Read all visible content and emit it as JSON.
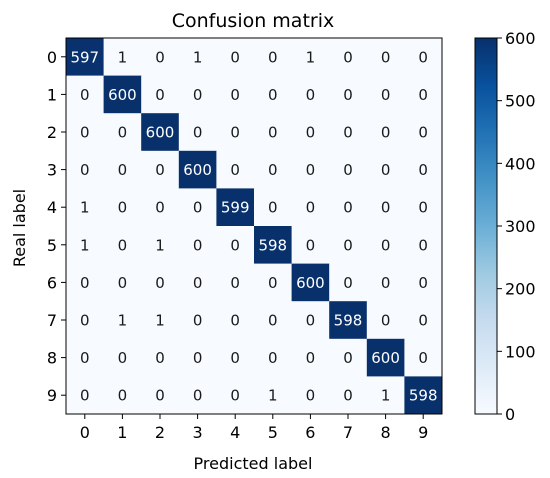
{
  "chart_data": {
    "type": "heatmap",
    "title": "Confusion matrix",
    "xlabel": "Predicted label",
    "ylabel": "Real label",
    "x_categories": [
      "0",
      "1",
      "2",
      "3",
      "4",
      "5",
      "6",
      "7",
      "8",
      "9"
    ],
    "y_categories": [
      "0",
      "1",
      "2",
      "3",
      "4",
      "5",
      "6",
      "7",
      "8",
      "9"
    ],
    "matrix": [
      [
        597,
        1,
        0,
        1,
        0,
        0,
        1,
        0,
        0,
        0
      ],
      [
        0,
        600,
        0,
        0,
        0,
        0,
        0,
        0,
        0,
        0
      ],
      [
        0,
        0,
        600,
        0,
        0,
        0,
        0,
        0,
        0,
        0
      ],
      [
        0,
        0,
        0,
        600,
        0,
        0,
        0,
        0,
        0,
        0
      ],
      [
        1,
        0,
        0,
        0,
        599,
        0,
        0,
        0,
        0,
        0
      ],
      [
        1,
        0,
        1,
        0,
        0,
        598,
        0,
        0,
        0,
        0
      ],
      [
        0,
        0,
        0,
        0,
        0,
        0,
        600,
        0,
        0,
        0
      ],
      [
        0,
        1,
        1,
        0,
        0,
        0,
        0,
        598,
        0,
        0
      ],
      [
        0,
        0,
        0,
        0,
        0,
        0,
        0,
        0,
        600,
        0
      ],
      [
        0,
        0,
        0,
        0,
        0,
        1,
        0,
        0,
        1,
        598
      ]
    ],
    "colormap": "Blues",
    "colorbar": {
      "min": 0,
      "max": 600,
      "ticks": [
        0,
        100,
        200,
        300,
        400,
        500,
        600
      ]
    },
    "colors": {
      "low": "#f7fbff",
      "high": "#08306b",
      "text_on_dark": "#ffffff",
      "text_on_light": "#1a1a1a"
    }
  }
}
